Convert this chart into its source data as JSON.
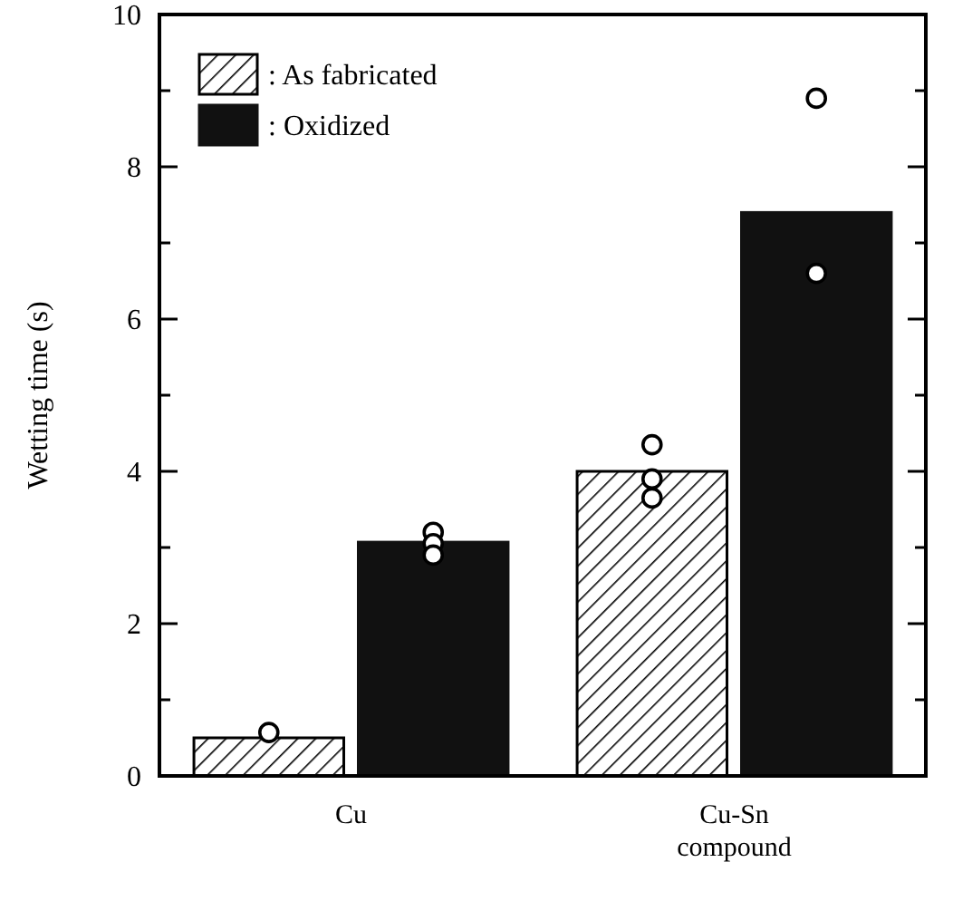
{
  "chart_data": {
    "type": "bar",
    "ylabel": "Wetting time  (s)",
    "categories": [
      "Cu",
      "Cu-Sn compound"
    ],
    "series": [
      {
        "name": ": As fabricated",
        "color": "#000000",
        "values": [
          0.5,
          4.0
        ]
      },
      {
        "name": ": Oxidized",
        "color": "#111111",
        "values": [
          3.07,
          7.4
        ]
      },
      {
        "type": "scatter",
        "color": "#ffffff",
        "x": [
          "Cu",
          "Cu-Sn compound",
          "Cu-Sn compound",
          "Cu-Sn compound"
        ],
        "values": [
          0.57,
          4.35,
          3.9,
          3.65
        ]
      },
      {
        "type": "scatter",
        "color": "#ffffff",
        "x": [
          "Cu",
          "Cu",
          "Cu",
          "Cu-Sn compound",
          "Cu-Sn compound"
        ],
        "values": [
          3.2,
          3.05,
          2.9,
          8.9,
          6.6
        ]
      }
    ],
    "ylim": [
      0,
      10
    ],
    "yticks": [
      0,
      {
        "value": 1,
        "label": null
      },
      2,
      {
        "value": 3,
        "label": null
      },
      4,
      {
        "value": 5,
        "label": null
      },
      6,
      {
        "value": 7,
        "label": null
      },
      8,
      {
        "value": 9,
        "label": null
      },
      10
    ],
    "legend": "top left",
    "marker": "circle"
  }
}
